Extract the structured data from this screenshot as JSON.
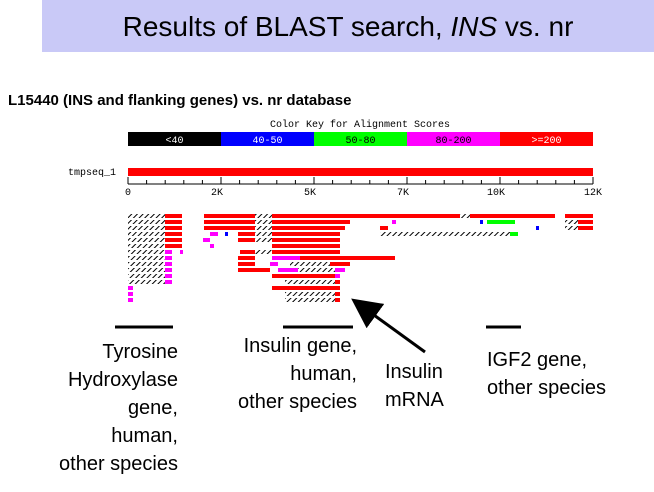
{
  "header": {
    "title": {
      "before": "Results of BLAST search, ",
      "italic": "INS",
      "after": " vs. nr"
    }
  },
  "subtitle": "L15440 (INS and flanking genes) vs. nr database",
  "color_key": {
    "title": "Color Key for Alignment Scores",
    "labels": [
      "<40",
      "40-50",
      "50-80",
      "80-200",
      ">=200"
    ]
  },
  "query": {
    "name": "tmpseq_1",
    "axis_labels": [
      "0",
      "2K",
      "5K",
      "7K",
      "10K",
      "12K"
    ]
  },
  "annotations": [
    {
      "lines": [
        "Tyrosine",
        "Hydroxylase",
        "gene,",
        "human,",
        "other species"
      ]
    },
    {
      "lines": [
        "Insulin gene,",
        "human,",
        "other species"
      ]
    },
    {
      "lines": [
        "Insulin",
        "mRNA"
      ]
    },
    {
      "lines": [
        "IGF2 gene,",
        "other species"
      ]
    }
  ]
}
